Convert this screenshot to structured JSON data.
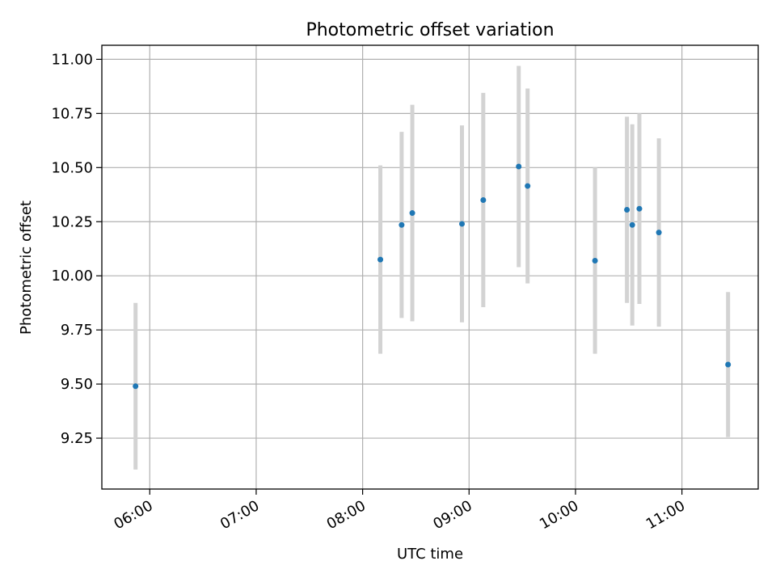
{
  "chart_data": {
    "type": "scatter",
    "title": "Photometric offset variation",
    "xlabel": "UTC time",
    "ylabel": "Photometric offset",
    "x_axis_type": "time",
    "xlim": [
      "05:33",
      "11:43"
    ],
    "ylim": [
      9.015,
      11.065
    ],
    "x_ticks": [
      "06:00",
      "07:00",
      "08:00",
      "09:00",
      "10:00",
      "11:00"
    ],
    "y_ticks": [
      "9.25",
      "9.50",
      "9.75",
      "10.00",
      "10.25",
      "10.50",
      "10.75",
      "11.00"
    ],
    "grid": true,
    "legend": false,
    "marker_color": "#1f77b4",
    "errorbar_color": "#d3d3d3",
    "points": [
      {
        "x": "05:52",
        "y": 9.49,
        "yerr": 0.385
      },
      {
        "x": "08:10",
        "y": 10.075,
        "yerr": 0.435
      },
      {
        "x": "08:22",
        "y": 10.235,
        "yerr": 0.43
      },
      {
        "x": "08:28",
        "y": 10.29,
        "yerr": 0.5
      },
      {
        "x": "08:56",
        "y": 10.24,
        "yerr": 0.455
      },
      {
        "x": "09:08",
        "y": 10.35,
        "yerr": 0.495
      },
      {
        "x": "09:28",
        "y": 10.505,
        "yerr": 0.465
      },
      {
        "x": "09:33",
        "y": 10.415,
        "yerr": 0.45
      },
      {
        "x": "10:11",
        "y": 10.07,
        "yerr": 0.43
      },
      {
        "x": "10:29",
        "y": 10.305,
        "yerr": 0.43
      },
      {
        "x": "10:32",
        "y": 10.235,
        "yerr": 0.465
      },
      {
        "x": "10:36",
        "y": 10.31,
        "yerr": 0.44
      },
      {
        "x": "10:47",
        "y": 10.2,
        "yerr": 0.435
      },
      {
        "x": "11:26",
        "y": 9.59,
        "yerr": 0.335
      }
    ]
  }
}
